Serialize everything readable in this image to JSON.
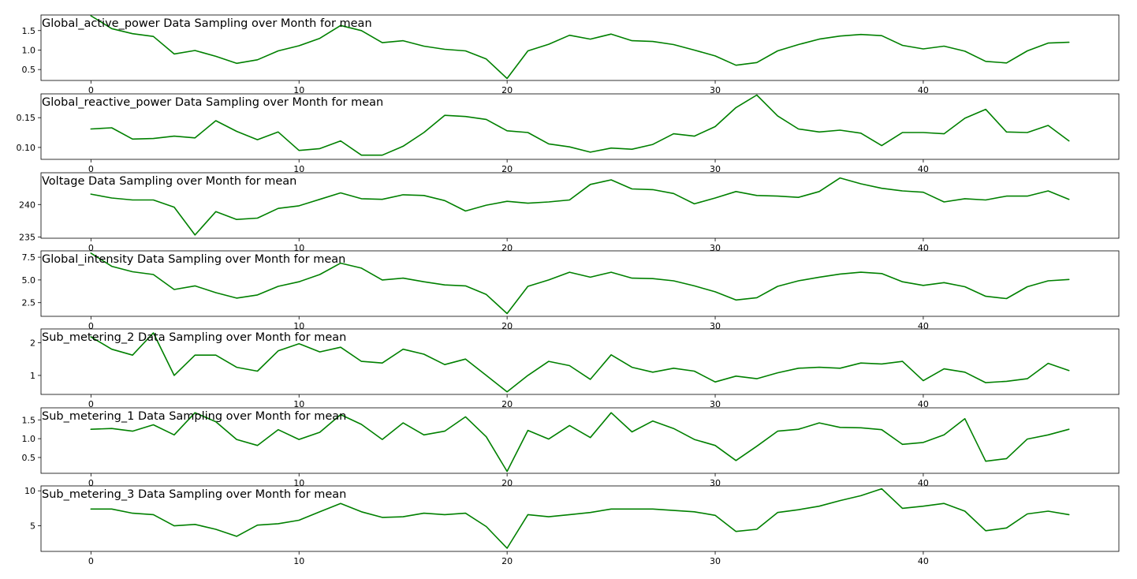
{
  "chart_data": [
    {
      "type": "line",
      "title": "Global_active_power Data Sampling over Month for mean",
      "xlabel": "",
      "ylabel": "",
      "xlim": [
        -2.4,
        49.4
      ],
      "ylim": [
        0.22,
        1.9
      ],
      "xticks": [
        0,
        10,
        20,
        30,
        40
      ],
      "yticks": [
        0.5,
        1.0,
        1.5
      ],
      "yticklabels": [
        "0.5",
        "1.0",
        "1.5"
      ],
      "color": "#008000",
      "grid": false,
      "x": [
        0,
        1,
        2,
        3,
        4,
        5,
        6,
        7,
        8,
        9,
        10,
        11,
        12,
        13,
        14,
        15,
        16,
        17,
        18,
        19,
        20,
        21,
        22,
        23,
        24,
        25,
        26,
        27,
        28,
        29,
        30,
        31,
        32,
        33,
        34,
        35,
        36,
        37,
        38,
        39,
        40,
        41,
        42,
        43,
        44,
        45,
        46,
        47
      ],
      "y": [
        1.88,
        1.55,
        1.42,
        1.35,
        0.9,
        0.99,
        0.84,
        0.66,
        0.75,
        0.98,
        1.11,
        1.3,
        1.63,
        1.5,
        1.19,
        1.24,
        1.1,
        1.02,
        0.98,
        0.77,
        0.27,
        0.98,
        1.15,
        1.38,
        1.28,
        1.41,
        1.24,
        1.22,
        1.14,
        1.0,
        0.85,
        0.61,
        0.68,
        0.98,
        1.14,
        1.28,
        1.36,
        1.4,
        1.37,
        1.12,
        1.03,
        1.1,
        0.97,
        0.71,
        0.67,
        0.98,
        1.18,
        1.2
      ]
    },
    {
      "type": "line",
      "title": "Global_reactive_power Data Sampling over Month for mean",
      "xlabel": "",
      "ylabel": "",
      "xlim": [
        -2.4,
        49.4
      ],
      "ylim": [
        0.08,
        0.19
      ],
      "xticks": [
        0,
        10,
        20,
        30,
        40
      ],
      "yticks": [
        0.1,
        0.15
      ],
      "yticklabels": [
        "0.10",
        "0.15"
      ],
      "color": "#008000",
      "grid": false,
      "x": [
        0,
        1,
        2,
        3,
        4,
        5,
        6,
        7,
        8,
        9,
        10,
        11,
        12,
        13,
        14,
        15,
        16,
        17,
        18,
        19,
        20,
        21,
        22,
        23,
        24,
        25,
        26,
        27,
        28,
        29,
        30,
        31,
        32,
        33,
        34,
        35,
        36,
        37,
        38,
        39,
        40,
        41,
        42,
        43,
        44,
        45,
        46,
        47
      ],
      "y": [
        0.131,
        0.133,
        0.114,
        0.115,
        0.119,
        0.116,
        0.145,
        0.127,
        0.113,
        0.126,
        0.095,
        0.098,
        0.111,
        0.087,
        0.087,
        0.102,
        0.125,
        0.154,
        0.152,
        0.147,
        0.128,
        0.125,
        0.106,
        0.101,
        0.092,
        0.099,
        0.097,
        0.105,
        0.123,
        0.119,
        0.135,
        0.167,
        0.188,
        0.153,
        0.131,
        0.126,
        0.129,
        0.124,
        0.103,
        0.125,
        0.125,
        0.123,
        0.149,
        0.164,
        0.126,
        0.125,
        0.137,
        0.111
      ]
    },
    {
      "type": "line",
      "title": "Voltage Data Sampling over Month for mean",
      "xlabel": "",
      "ylabel": "",
      "xlim": [
        -2.4,
        49.4
      ],
      "ylim": [
        234.8,
        244.9
      ],
      "xticks": [
        0,
        10,
        20,
        30,
        40
      ],
      "yticks": [
        235,
        240
      ],
      "yticklabels": [
        "235",
        "240"
      ],
      "color": "#008000",
      "grid": false,
      "x": [
        0,
        1,
        2,
        3,
        4,
        5,
        6,
        7,
        8,
        9,
        10,
        11,
        12,
        13,
        14,
        15,
        16,
        17,
        18,
        19,
        20,
        21,
        22,
        23,
        24,
        25,
        26,
        27,
        28,
        29,
        30,
        31,
        32,
        33,
        34,
        35,
        36,
        37,
        38,
        39,
        40,
        41,
        42,
        43,
        44,
        45,
        46,
        47
      ],
      "y": [
        241.6,
        241.0,
        240.7,
        240.7,
        239.6,
        235.3,
        238.9,
        237.7,
        237.9,
        239.4,
        239.8,
        240.8,
        241.8,
        240.9,
        240.8,
        241.5,
        241.4,
        240.6,
        239.0,
        239.9,
        240.5,
        240.2,
        240.4,
        240.7,
        243.1,
        243.8,
        242.4,
        242.3,
        241.7,
        240.1,
        241.0,
        242.0,
        241.4,
        241.3,
        241.1,
        242.0,
        244.1,
        243.2,
        242.5,
        242.1,
        241.9,
        240.4,
        240.9,
        240.7,
        241.3,
        241.3,
        242.1,
        240.8
      ]
    },
    {
      "type": "line",
      "title": "Global_intensity Data Sampling over Month for mean",
      "xlabel": "",
      "ylabel": "",
      "xlim": [
        -2.4,
        49.4
      ],
      "ylim": [
        1.0,
        8.2
      ],
      "xticks": [
        0,
        10,
        20,
        30,
        40
      ],
      "yticks": [
        2.5,
        5.0,
        7.5
      ],
      "yticklabels": [
        "2.5",
        "5.0",
        "7.5"
      ],
      "color": "#008000",
      "grid": false,
      "x": [
        0,
        1,
        2,
        3,
        4,
        5,
        6,
        7,
        8,
        9,
        10,
        11,
        12,
        13,
        14,
        15,
        16,
        17,
        18,
        19,
        20,
        21,
        22,
        23,
        24,
        25,
        26,
        27,
        28,
        29,
        30,
        31,
        32,
        33,
        34,
        35,
        36,
        37,
        38,
        39,
        40,
        41,
        42,
        43,
        44,
        45,
        46,
        47
      ],
      "y": [
        7.95,
        6.5,
        5.9,
        5.6,
        3.95,
        4.35,
        3.6,
        3.0,
        3.35,
        4.3,
        4.8,
        5.6,
        6.85,
        6.3,
        5.0,
        5.2,
        4.8,
        4.45,
        4.35,
        3.4,
        1.3,
        4.3,
        5.0,
        5.85,
        5.3,
        5.85,
        5.2,
        5.15,
        4.9,
        4.35,
        3.7,
        2.8,
        3.05,
        4.3,
        4.9,
        5.3,
        5.65,
        5.85,
        5.7,
        4.8,
        4.4,
        4.7,
        4.25,
        3.2,
        2.95,
        4.25,
        4.9,
        5.05
      ]
    },
    {
      "type": "line",
      "title": "Sub_metering_2 Data Sampling over Month for mean",
      "xlabel": "",
      "ylabel": "",
      "xlim": [
        -2.4,
        49.4
      ],
      "ylim": [
        0.42,
        2.42
      ],
      "xticks": [
        0,
        10,
        20,
        30,
        40
      ],
      "yticks": [
        1,
        2
      ],
      "yticklabels": [
        "1",
        "2"
      ],
      "color": "#008000",
      "grid": false,
      "x": [
        0,
        1,
        2,
        3,
        4,
        5,
        6,
        7,
        8,
        9,
        10,
        11,
        12,
        13,
        14,
        15,
        16,
        17,
        18,
        19,
        20,
        21,
        22,
        23,
        24,
        25,
        26,
        27,
        28,
        29,
        30,
        31,
        32,
        33,
        34,
        35,
        36,
        37,
        38,
        39,
        40,
        41,
        42,
        43,
        44,
        45,
        46,
        47
      ],
      "y": [
        2.18,
        1.8,
        1.62,
        2.3,
        1.0,
        1.62,
        1.62,
        1.25,
        1.13,
        1.75,
        1.97,
        1.72,
        1.86,
        1.43,
        1.38,
        1.8,
        1.65,
        1.33,
        1.5,
        1.0,
        0.5,
        1.0,
        1.43,
        1.3,
        0.88,
        1.63,
        1.25,
        1.1,
        1.22,
        1.13,
        0.8,
        0.98,
        0.9,
        1.08,
        1.22,
        1.25,
        1.22,
        1.38,
        1.35,
        1.43,
        0.84,
        1.2,
        1.1,
        0.78,
        0.82,
        0.9,
        1.37,
        1.15
      ]
    },
    {
      "type": "line",
      "title": "Sub_metering_1 Data Sampling over Month for mean",
      "xlabel": "",
      "ylabel": "",
      "xlim": [
        -2.4,
        49.4
      ],
      "ylim": [
        0.08,
        1.82
      ],
      "xticks": [
        0,
        10,
        20,
        30,
        40
      ],
      "yticks": [
        0.5,
        1.0,
        1.5
      ],
      "yticklabels": [
        "0.5",
        "1.0",
        "1.5"
      ],
      "color": "#008000",
      "grid": false,
      "x": [
        0,
        1,
        2,
        3,
        4,
        5,
        6,
        7,
        8,
        9,
        10,
        11,
        12,
        13,
        14,
        15,
        16,
        17,
        18,
        19,
        20,
        21,
        22,
        23,
        24,
        25,
        26,
        27,
        28,
        29,
        30,
        31,
        32,
        33,
        34,
        35,
        36,
        37,
        38,
        39,
        40,
        41,
        42,
        43,
        44,
        45,
        46,
        47
      ],
      "y": [
        1.25,
        1.27,
        1.2,
        1.37,
        1.1,
        1.69,
        1.45,
        0.98,
        0.82,
        1.24,
        0.98,
        1.17,
        1.64,
        1.38,
        0.98,
        1.42,
        1.1,
        1.2,
        1.58,
        1.05,
        0.13,
        1.22,
        0.99,
        1.35,
        1.03,
        1.69,
        1.18,
        1.47,
        1.27,
        0.98,
        0.82,
        0.42,
        0.8,
        1.2,
        1.25,
        1.42,
        1.3,
        1.29,
        1.24,
        0.85,
        0.9,
        1.1,
        1.53,
        0.4,
        0.47,
        0.99,
        1.1,
        1.25
      ]
    },
    {
      "type": "line",
      "title": "Sub_metering_3 Data Sampling over Month for mean",
      "xlabel": "",
      "ylabel": "",
      "xlim": [
        -2.4,
        49.4
      ],
      "ylim": [
        1.35,
        10.7
      ],
      "xticks": [
        0,
        10,
        20,
        30,
        40
      ],
      "yticks": [
        5,
        10
      ],
      "yticklabels": [
        "5",
        "10"
      ],
      "color": "#008000",
      "grid": false,
      "x": [
        0,
        1,
        2,
        3,
        4,
        5,
        6,
        7,
        8,
        9,
        10,
        11,
        12,
        13,
        14,
        15,
        16,
        17,
        18,
        19,
        20,
        21,
        22,
        23,
        24,
        25,
        26,
        27,
        28,
        29,
        30,
        31,
        32,
        33,
        34,
        35,
        36,
        37,
        38,
        39,
        40,
        41,
        42,
        43,
        44,
        45,
        46,
        47
      ],
      "y": [
        7.4,
        7.4,
        6.8,
        6.6,
        5.0,
        5.2,
        4.5,
        3.5,
        5.1,
        5.3,
        5.8,
        7.0,
        8.2,
        7.0,
        6.2,
        6.3,
        6.8,
        6.6,
        6.8,
        4.9,
        1.8,
        6.6,
        6.3,
        6.6,
        6.9,
        7.4,
        7.4,
        7.4,
        7.2,
        7.0,
        6.5,
        4.2,
        4.5,
        6.9,
        7.3,
        7.8,
        8.6,
        9.3,
        10.3,
        7.5,
        7.8,
        8.2,
        7.1,
        4.3,
        4.7,
        6.7,
        7.1,
        6.6
      ]
    }
  ]
}
